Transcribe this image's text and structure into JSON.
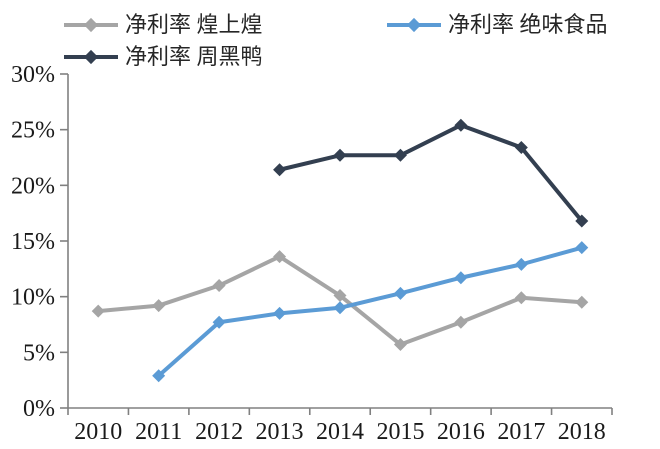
{
  "chart_data": {
    "type": "line",
    "categories": [
      "2010",
      "2011",
      "2012",
      "2013",
      "2014",
      "2015",
      "2016",
      "2017",
      "2018"
    ],
    "series": [
      {
        "name": "净利率 煌上煌",
        "color": "#A5A5A5",
        "values": [
          8.7,
          9.2,
          11.0,
          13.6,
          10.1,
          5.7,
          7.7,
          9.9,
          9.5
        ]
      },
      {
        "name": "净利率 周黑鸭",
        "color": "#333F50",
        "values": [
          null,
          null,
          null,
          21.4,
          22.7,
          22.7,
          25.4,
          23.4,
          16.8
        ]
      },
      {
        "name": "净利率 绝味食品",
        "color": "#5B9BD5",
        "values": [
          null,
          2.9,
          7.7,
          8.5,
          9.0,
          10.3,
          11.7,
          12.9,
          14.4
        ]
      }
    ],
    "title": "",
    "xlabel": "",
    "ylabel": "",
    "ylim": [
      0,
      30
    ],
    "ytick_step": 5,
    "ytick_labels": [
      "0%",
      "5%",
      "10%",
      "15%",
      "20%",
      "25%",
      "30%"
    ],
    "grid": false,
    "marker": "diamond",
    "legend_position": "top",
    "axis_color": "#808080",
    "label_color": "#1a1a1a"
  }
}
